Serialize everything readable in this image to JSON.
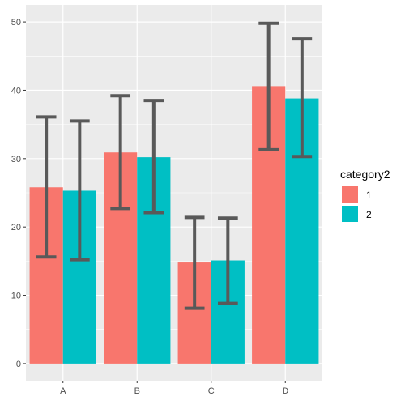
{
  "chart_data": {
    "type": "bar",
    "categories": [
      "A",
      "B",
      "C",
      "D"
    ],
    "series": [
      {
        "name": "1",
        "values": [
          25.8,
          30.9,
          14.8,
          40.6
        ],
        "error_low": [
          15.6,
          22.7,
          8.1,
          31.3
        ],
        "error_high": [
          36.1,
          39.2,
          21.4,
          49.8
        ],
        "color": "#F8766D"
      },
      {
        "name": "2",
        "values": [
          25.3,
          30.2,
          15.1,
          38.8
        ],
        "error_low": [
          15.2,
          22.1,
          8.8,
          30.3
        ],
        "error_high": [
          35.5,
          38.5,
          21.3,
          47.5
        ],
        "color": "#00BFC4"
      }
    ],
    "ylim": [
      -2.5,
      52.5
    ],
    "y_ticks": [
      0,
      10,
      20,
      30,
      40,
      50
    ],
    "legend": {
      "title": "category2",
      "position": "right"
    },
    "grid": true,
    "panel_color": "#EBEBEB",
    "errorbar_color": "#595959"
  }
}
